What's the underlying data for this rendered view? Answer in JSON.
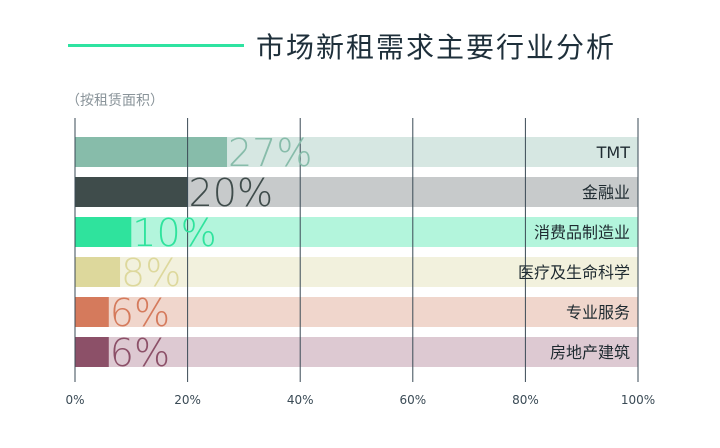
{
  "header": {
    "title": "市场新租需求主要行业分析",
    "subtitle": "（按租赁面积）"
  },
  "chart_data": {
    "type": "bar",
    "orientation": "horizontal",
    "title": "市场新租需求主要行业分析",
    "subtitle": "（按租赁面积）",
    "categories": [
      "TMT",
      "金融业",
      "消费品制造业",
      "医疗及生命科学",
      "专业服务",
      "房地产建筑"
    ],
    "values": [
      27,
      20,
      10,
      8,
      6,
      6
    ],
    "value_labels": [
      "27%",
      "20%",
      "10%",
      "8%",
      "6%",
      "6%"
    ],
    "bar_colors": [
      "#87bcaa",
      "#3f4c4b",
      "#2fe39d",
      "#ddd89c",
      "#d57a5c",
      "#8c5068"
    ],
    "track_colors": [
      "#d6e7e2",
      "#c7cacb",
      "#b3f5dc",
      "#f2f1dd",
      "#f0d6cc",
      "#ddc9d2"
    ],
    "label_colors": [
      "#87bcaa",
      "#3f4c4b",
      "#2fe39d",
      "#ddd89c",
      "#d57a5c",
      "#8c5068"
    ],
    "xlim": [
      0,
      100
    ],
    "xticks": [
      0,
      20,
      40,
      60,
      80,
      100
    ],
    "xtick_labels": [
      "0%",
      "20%",
      "40%",
      "60%",
      "80%",
      "100%"
    ],
    "grid": true,
    "grid_color": "#3a4a55"
  }
}
